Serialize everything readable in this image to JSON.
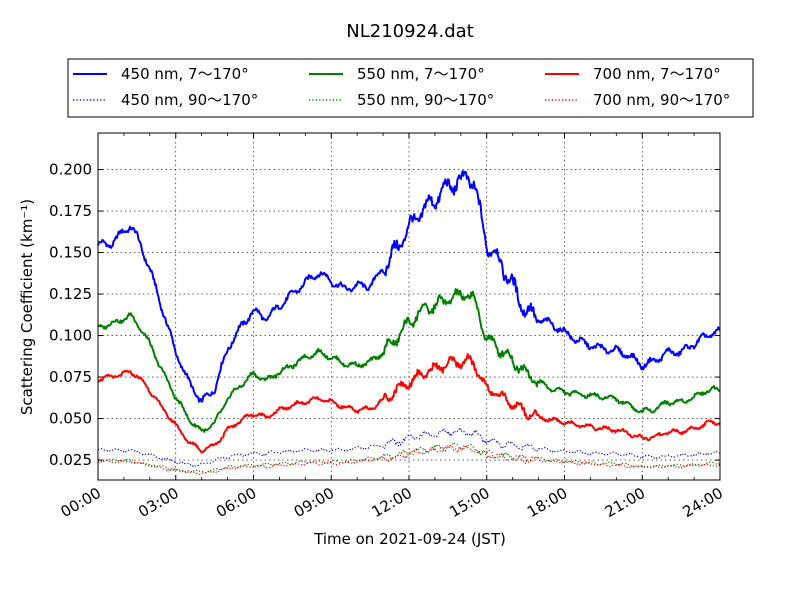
{
  "chart_data": {
    "type": "line",
    "title": "NL210924.dat",
    "xlabel": "Time on 2021-09-24 (JST)",
    "ylabel": "Scattering Coefficient (km⁻¹)",
    "xlim": [
      0,
      24
    ],
    "ylim": [
      0.013,
      0.222
    ],
    "x_ticks": [
      {
        "v": 0,
        "label": "00:00"
      },
      {
        "v": 3,
        "label": "03:00"
      },
      {
        "v": 6,
        "label": "06:00"
      },
      {
        "v": 9,
        "label": "09:00"
      },
      {
        "v": 12,
        "label": "12:00"
      },
      {
        "v": 15,
        "label": "15:00"
      },
      {
        "v": 18,
        "label": "18:00"
      },
      {
        "v": 21,
        "label": "21:00"
      },
      {
        "v": 24,
        "label": "24:00"
      }
    ],
    "y_ticks": [
      {
        "v": 0.025,
        "label": "0.025"
      },
      {
        "v": 0.05,
        "label": "0.050"
      },
      {
        "v": 0.075,
        "label": "0.075"
      },
      {
        "v": 0.1,
        "label": "0.100"
      },
      {
        "v": 0.125,
        "label": "0.125"
      },
      {
        "v": 0.15,
        "label": "0.150"
      },
      {
        "v": 0.175,
        "label": "0.175"
      },
      {
        "v": 0.2,
        "label": "0.200"
      }
    ],
    "grid": true,
    "legend_position": "top",
    "x": [
      0,
      0.5,
      1,
      1.25,
      1.5,
      2,
      2.5,
      3,
      3.5,
      4,
      4.5,
      5,
      5.5,
      6,
      6.5,
      7,
      7.5,
      8,
      8.5,
      9,
      9.5,
      10,
      10.5,
      11,
      11.5,
      12,
      12.5,
      13,
      13.5,
      14,
      14.25,
      14.5,
      15,
      15.5,
      16,
      16.5,
      17,
      17.5,
      18,
      18.5,
      19,
      19.5,
      20,
      20.5,
      21,
      21.5,
      22,
      22.5,
      23,
      23.5,
      24
    ],
    "series": [
      {
        "name": "450 nm, 7～170°",
        "color": "#0000ff",
        "style": "solid",
        "noise": 0.003,
        "values": [
          0.155,
          0.155,
          0.163,
          0.166,
          0.16,
          0.14,
          0.115,
          0.09,
          0.072,
          0.06,
          0.068,
          0.092,
          0.105,
          0.115,
          0.11,
          0.118,
          0.125,
          0.132,
          0.138,
          0.133,
          0.128,
          0.13,
          0.13,
          0.14,
          0.152,
          0.165,
          0.175,
          0.182,
          0.19,
          0.193,
          0.196,
          0.192,
          0.155,
          0.145,
          0.13,
          0.115,
          0.11,
          0.107,
          0.102,
          0.097,
          0.094,
          0.092,
          0.091,
          0.088,
          0.082,
          0.085,
          0.09,
          0.09,
          0.095,
          0.1,
          0.103
        ]
      },
      {
        "name": "450 nm, 90～170°",
        "color": "#0000ff",
        "style": "dotted",
        "noise": 0.0012,
        "values": [
          0.031,
          0.031,
          0.031,
          0.031,
          0.03,
          0.028,
          0.026,
          0.024,
          0.022,
          0.022,
          0.025,
          0.027,
          0.028,
          0.029,
          0.029,
          0.03,
          0.03,
          0.031,
          0.031,
          0.031,
          0.031,
          0.032,
          0.033,
          0.034,
          0.036,
          0.038,
          0.04,
          0.041,
          0.042,
          0.042,
          0.042,
          0.041,
          0.037,
          0.035,
          0.034,
          0.033,
          0.032,
          0.031,
          0.03,
          0.03,
          0.029,
          0.029,
          0.029,
          0.028,
          0.027,
          0.027,
          0.027,
          0.028,
          0.028,
          0.029,
          0.029
        ]
      },
      {
        "name": "550 nm, 7～170°",
        "color": "#008000",
        "style": "solid",
        "noise": 0.0022,
        "values": [
          0.105,
          0.107,
          0.11,
          0.112,
          0.108,
          0.095,
          0.078,
          0.063,
          0.05,
          0.042,
          0.047,
          0.062,
          0.07,
          0.077,
          0.073,
          0.078,
          0.082,
          0.087,
          0.09,
          0.087,
          0.083,
          0.082,
          0.084,
          0.09,
          0.098,
          0.108,
          0.115,
          0.118,
          0.122,
          0.124,
          0.125,
          0.122,
          0.098,
          0.092,
          0.085,
          0.078,
          0.072,
          0.068,
          0.066,
          0.065,
          0.064,
          0.063,
          0.062,
          0.058,
          0.054,
          0.056,
          0.06,
          0.06,
          0.063,
          0.067,
          0.068
        ]
      },
      {
        "name": "550 nm, 90～170°",
        "color": "#008000",
        "style": "dotted",
        "noise": 0.001,
        "values": [
          0.025,
          0.025,
          0.025,
          0.025,
          0.024,
          0.022,
          0.021,
          0.019,
          0.018,
          0.018,
          0.019,
          0.021,
          0.021,
          0.022,
          0.022,
          0.023,
          0.023,
          0.024,
          0.024,
          0.024,
          0.024,
          0.025,
          0.026,
          0.027,
          0.028,
          0.03,
          0.031,
          0.032,
          0.033,
          0.033,
          0.033,
          0.032,
          0.029,
          0.028,
          0.027,
          0.026,
          0.026,
          0.025,
          0.024,
          0.024,
          0.023,
          0.023,
          0.023,
          0.022,
          0.021,
          0.021,
          0.022,
          0.022,
          0.022,
          0.023,
          0.023
        ]
      },
      {
        "name": "700 nm, 7～170°",
        "color": "#ff0000",
        "style": "solid",
        "noise": 0.0018,
        "values": [
          0.074,
          0.075,
          0.077,
          0.078,
          0.076,
          0.067,
          0.056,
          0.046,
          0.036,
          0.031,
          0.034,
          0.043,
          0.049,
          0.053,
          0.051,
          0.055,
          0.058,
          0.06,
          0.062,
          0.06,
          0.057,
          0.055,
          0.056,
          0.061,
          0.067,
          0.072,
          0.077,
          0.08,
          0.083,
          0.084,
          0.085,
          0.083,
          0.068,
          0.064,
          0.059,
          0.054,
          0.051,
          0.049,
          0.048,
          0.046,
          0.045,
          0.044,
          0.043,
          0.041,
          0.038,
          0.039,
          0.042,
          0.042,
          0.044,
          0.047,
          0.048
        ]
      },
      {
        "name": "700 nm, 90～170°",
        "color": "#ff0000",
        "style": "dotted",
        "noise": 0.001,
        "values": [
          0.024,
          0.024,
          0.024,
          0.024,
          0.023,
          0.022,
          0.02,
          0.019,
          0.018,
          0.017,
          0.018,
          0.02,
          0.021,
          0.021,
          0.021,
          0.022,
          0.022,
          0.023,
          0.023,
          0.023,
          0.023,
          0.024,
          0.025,
          0.026,
          0.027,
          0.029,
          0.03,
          0.031,
          0.032,
          0.032,
          0.032,
          0.031,
          0.028,
          0.027,
          0.026,
          0.025,
          0.025,
          0.024,
          0.024,
          0.023,
          0.023,
          0.022,
          0.022,
          0.021,
          0.021,
          0.021,
          0.021,
          0.021,
          0.022,
          0.022,
          0.022
        ]
      }
    ]
  }
}
